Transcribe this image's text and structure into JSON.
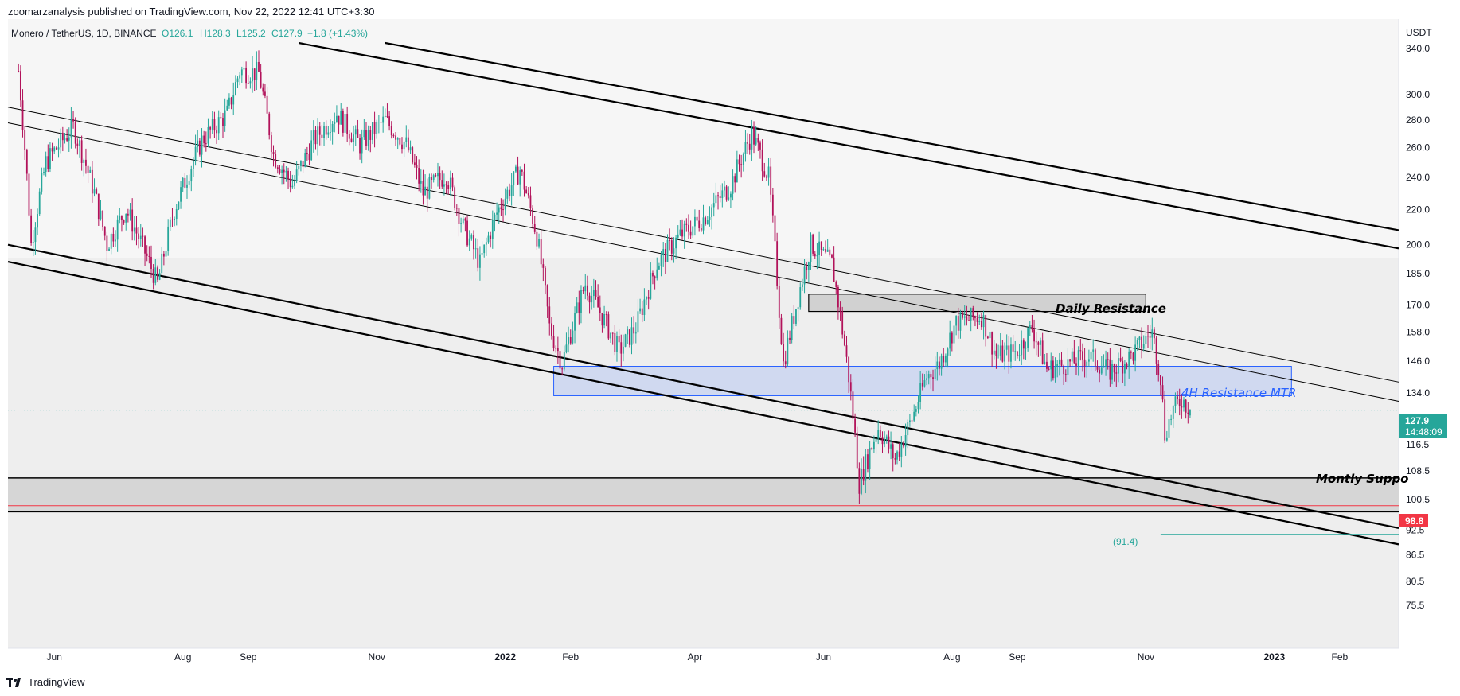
{
  "header": {
    "publisher_line": "zoomarzanalysis published on TradingView.com, Nov 22, 2022 12:41 UTC+3:30"
  },
  "legend": {
    "symbol": "Monero / TetherUS, 1D, BINANCE",
    "open": "O126.1",
    "high": "H128.3",
    "low": "L125.2",
    "close": "C127.9",
    "change": "+1.8 (+1.43%)"
  },
  "price_axis": {
    "currency": "USDT",
    "ticks": [
      "340.0",
      "300.0",
      "280.0",
      "260.0",
      "240.0",
      "220.0",
      "200.0",
      "185.0",
      "170.0",
      "158.0",
      "146.0",
      "134.0",
      "116.5",
      "108.5",
      "100.5",
      "92.5",
      "86.5",
      "80.5",
      "75.5"
    ]
  },
  "current_price": {
    "value": "127.9",
    "countdown": "14:48:09",
    "color": "#26a69a"
  },
  "marker_price": {
    "value": "98.8",
    "color": "#f23645"
  },
  "measure_label": "(91.4)",
  "annotations": {
    "daily_resistance": "Daily Resistance",
    "h4_resistance": "4H Resistance MTR",
    "monthly_support": "Montly Suppo"
  },
  "colors": {
    "up": "#26a69a",
    "down": "#b2125a",
    "zone_blue": "#2962ff",
    "zone_grey": "#9e9e9e"
  },
  "footer": {
    "brand": "TradingView"
  },
  "chart_data": {
    "type": "candlestick",
    "symbol": "XMRUSDT",
    "timeframe": "1D",
    "exchange": "BINANCE",
    "x_ticks": [
      "Jun",
      "Aug",
      "Sep",
      "Nov",
      "2022",
      "Feb",
      "Apr",
      "Jun",
      "Aug",
      "Sep",
      "Nov",
      "2023",
      "Feb"
    ],
    "y_scale": "log",
    "ylim": [
      72,
      345
    ],
    "ohlc_last": {
      "open": 126.1,
      "high": 128.3,
      "low": 125.2,
      "close": 127.9
    },
    "price_path": [
      {
        "t": "2021-05-15",
        "p": 320
      },
      {
        "t": "2021-05-21",
        "p": 200
      },
      {
        "t": "2021-05-28",
        "p": 250
      },
      {
        "t": "2021-06-10",
        "p": 275
      },
      {
        "t": "2021-06-20",
        "p": 230
      },
      {
        "t": "2021-06-26",
        "p": 200
      },
      {
        "t": "2021-07-05",
        "p": 220
      },
      {
        "t": "2021-07-20",
        "p": 180
      },
      {
        "t": "2021-07-28",
        "p": 220
      },
      {
        "t": "2021-08-10",
        "p": 265
      },
      {
        "t": "2021-08-22",
        "p": 285
      },
      {
        "t": "2021-08-28",
        "p": 320
      },
      {
        "t": "2021-09-06",
        "p": 318
      },
      {
        "t": "2021-09-13",
        "p": 255
      },
      {
        "t": "2021-09-22",
        "p": 235
      },
      {
        "t": "2021-10-02",
        "p": 265
      },
      {
        "t": "2021-10-13",
        "p": 285
      },
      {
        "t": "2021-10-24",
        "p": 262
      },
      {
        "t": "2021-11-05",
        "p": 280
      },
      {
        "t": "2021-11-15",
        "p": 262
      },
      {
        "t": "2021-11-23",
        "p": 230
      },
      {
        "t": "2021-12-04",
        "p": 242
      },
      {
        "t": "2021-12-12",
        "p": 210
      },
      {
        "t": "2021-12-20",
        "p": 190
      },
      {
        "t": "2021-12-28",
        "p": 218
      },
      {
        "t": "2022-01-08",
        "p": 245
      },
      {
        "t": "2022-01-16",
        "p": 205
      },
      {
        "t": "2022-01-22",
        "p": 160
      },
      {
        "t": "2022-01-28",
        "p": 145
      },
      {
        "t": "2022-02-08",
        "p": 180
      },
      {
        "t": "2022-02-24",
        "p": 150
      },
      {
        "t": "2022-03-04",
        "p": 160
      },
      {
        "t": "2022-03-14",
        "p": 190
      },
      {
        "t": "2022-03-25",
        "p": 205
      },
      {
        "t": "2022-04-05",
        "p": 215
      },
      {
        "t": "2022-04-18",
        "p": 235
      },
      {
        "t": "2022-04-28",
        "p": 270
      },
      {
        "t": "2022-05-06",
        "p": 240
      },
      {
        "t": "2022-05-11",
        "p": 168
      },
      {
        "t": "2022-05-13",
        "p": 145
      },
      {
        "t": "2022-05-18",
        "p": 165
      },
      {
        "t": "2022-05-26",
        "p": 200
      },
      {
        "t": "2022-06-05",
        "p": 190
      },
      {
        "t": "2022-06-13",
        "p": 140
      },
      {
        "t": "2022-06-18",
        "p": 105
      },
      {
        "t": "2022-06-27",
        "p": 122
      },
      {
        "t": "2022-07-05",
        "p": 112
      },
      {
        "t": "2022-07-13",
        "p": 125
      },
      {
        "t": "2022-07-20",
        "p": 140
      },
      {
        "t": "2022-07-26",
        "p": 145
      },
      {
        "t": "2022-08-03",
        "p": 162
      },
      {
        "t": "2022-08-15",
        "p": 165
      },
      {
        "t": "2022-08-22",
        "p": 148
      },
      {
        "t": "2022-09-01",
        "p": 150
      },
      {
        "t": "2022-09-08",
        "p": 160
      },
      {
        "t": "2022-09-15",
        "p": 143
      },
      {
        "t": "2022-09-25",
        "p": 145
      },
      {
        "t": "2022-10-05",
        "p": 148
      },
      {
        "t": "2022-10-15",
        "p": 142
      },
      {
        "t": "2022-10-25",
        "p": 148
      },
      {
        "t": "2022-11-04",
        "p": 158
      },
      {
        "t": "2022-11-08",
        "p": 140
      },
      {
        "t": "2022-11-10",
        "p": 120
      },
      {
        "t": "2022-11-14",
        "p": 128
      },
      {
        "t": "2022-11-18",
        "p": 132
      },
      {
        "t": "2022-11-22",
        "p": 127.9
      }
    ],
    "levels": {
      "daily_resistance_zone": [
        167,
        175
      ],
      "h4_resistance_zone": [
        133,
        144
      ],
      "monthly_support_zone": [
        97.2,
        106.5
      ],
      "marked_price": 98.8,
      "measured_target": 91.4
    },
    "trendlines": [
      {
        "t1": "2021-09-25",
        "p1": 345,
        "t2": "2023-03-01",
        "p2": 198
      },
      {
        "t1": "2021-11-05",
        "p1": 345,
        "t2": "2023-03-01",
        "p2": 208
      },
      {
        "t1": "2021-05-10",
        "p1": 290,
        "t2": "2023-03-01",
        "p2": 138
      },
      {
        "t1": "2021-05-10",
        "p1": 278,
        "t2": "2023-03-01",
        "p2": 131
      },
      {
        "t1": "2021-05-10",
        "p1": 200,
        "t2": "2023-03-01",
        "p2": 93
      },
      {
        "t1": "2021-05-10",
        "p1": 191,
        "t2": "2023-03-01",
        "p2": 89
      }
    ]
  }
}
